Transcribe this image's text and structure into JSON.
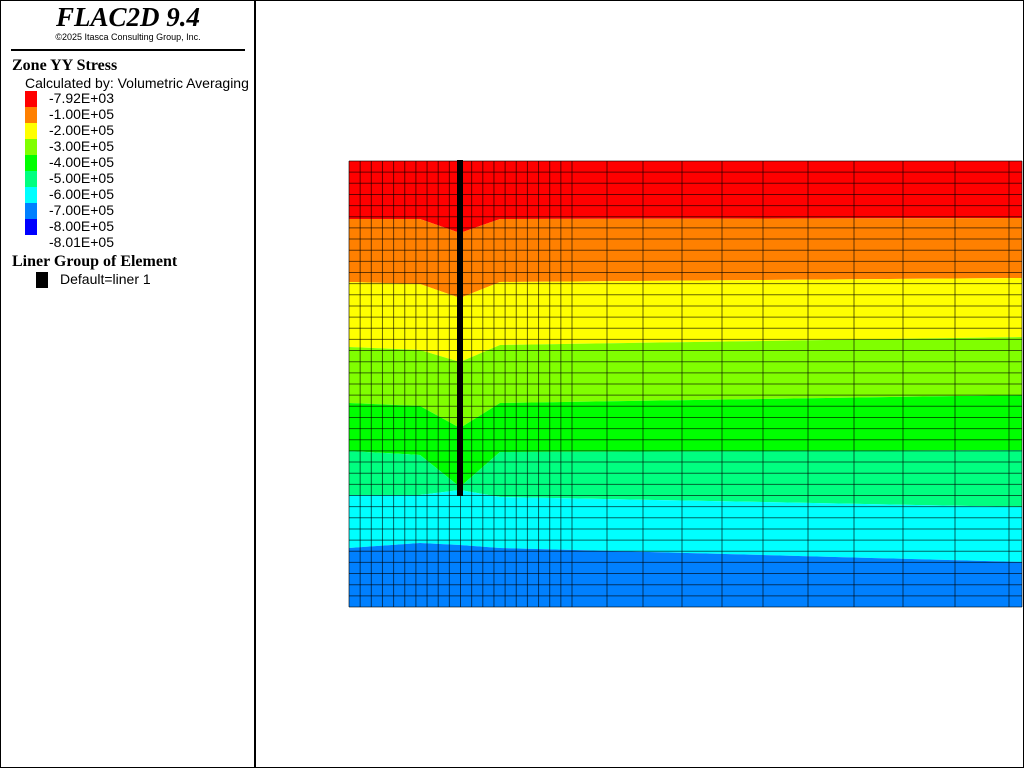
{
  "header": {
    "title": "FLAC2D 9.4",
    "copyright": "©2025 Itasca Consulting Group, Inc."
  },
  "legend": {
    "title": "Zone YY Stress",
    "subtitle": "Calculated by: Volumetric Averaging",
    "items": [
      {
        "label": "-7.92E+03",
        "color": "#ff0000"
      },
      {
        "label": "-1.00E+05",
        "color": "#ff8000"
      },
      {
        "label": "-2.00E+05",
        "color": "#ffff00"
      },
      {
        "label": "-3.00E+05",
        "color": "#80ff00"
      },
      {
        "label": "-4.00E+05",
        "color": "#00ff00"
      },
      {
        "label": "-5.00E+05",
        "color": "#00ff80"
      },
      {
        "label": "-6.00E+05",
        "color": "#00ffff"
      },
      {
        "label": "-7.00E+05",
        "color": "#0080ff"
      },
      {
        "label": "-8.00E+05",
        "color": "#0080ff"
      },
      {
        "label": "-8.01E+05",
        "color": "#0000ff"
      }
    ],
    "liner_title": "Liner Group of Element",
    "liner_items": [
      {
        "label": "Default=liner 1",
        "color": "#000000"
      }
    ]
  }
}
